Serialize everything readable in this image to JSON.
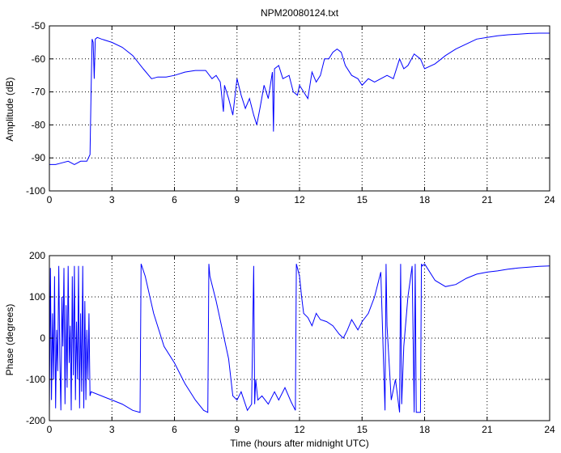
{
  "chart_data": [
    {
      "type": "line",
      "title": "NPM20080124.txt",
      "xlabel": "",
      "ylabel": "Amplitude (dB)",
      "xlim": [
        0,
        24
      ],
      "ylim": [
        -100,
        -50
      ],
      "xticks": [
        0,
        3,
        6,
        9,
        12,
        15,
        18,
        21,
        24
      ],
      "yticks": [
        -100,
        -90,
        -80,
        -70,
        -60,
        -50
      ],
      "grid": true,
      "color": "#0000ff",
      "series": [
        {
          "x": [
            0,
            0.3,
            0.6,
            0.9,
            1.2,
            1.5,
            1.8,
            1.95,
            2.0,
            2.05,
            2.1,
            2.15,
            2.2,
            2.3,
            2.5,
            3.0,
            3.5,
            4.0,
            4.5,
            4.9,
            5.2,
            5.6,
            6.0,
            6.5,
            7.0,
            7.5,
            7.8,
            8.0,
            8.2,
            8.3,
            8.35,
            8.4,
            8.6,
            8.8,
            9.0,
            9.2,
            9.4,
            9.6,
            9.8,
            9.95,
            10.1,
            10.3,
            10.5,
            10.7,
            10.75,
            10.8,
            11.0,
            11.2,
            11.5,
            11.7,
            11.9,
            12.0,
            12.2,
            12.4,
            12.6,
            12.8,
            13.0,
            13.2,
            13.4,
            13.6,
            13.8,
            14.0,
            14.2,
            14.5,
            14.8,
            15.0,
            15.3,
            15.6,
            15.9,
            16.2,
            16.5,
            16.8,
            17.0,
            17.2,
            17.5,
            17.8,
            18.0,
            18.5,
            19.0,
            19.5,
            20.0,
            20.5,
            21.0,
            21.5,
            22.0,
            22.5,
            23.0,
            23.5,
            24.0
          ],
          "y": [
            -92,
            -92,
            -91.5,
            -91,
            -92,
            -91,
            -91,
            -89,
            -70,
            -54,
            -55,
            -66,
            -54,
            -53.5,
            -54,
            -55,
            -56.5,
            -59,
            -63,
            -66,
            -65.5,
            -65.5,
            -65,
            -64,
            -63.5,
            -63.5,
            -66,
            -65,
            -67,
            -73,
            -76,
            -68,
            -72,
            -77,
            -66,
            -71,
            -75,
            -72,
            -77,
            -80,
            -75,
            -68,
            -72,
            -64,
            -82,
            -63,
            -62,
            -66,
            -65,
            -70,
            -71,
            -68,
            -70,
            -72,
            -64,
            -67,
            -65,
            -60,
            -60,
            -58,
            -57,
            -58,
            -62,
            -65,
            -66,
            -68,
            -66,
            -67,
            -66,
            -65,
            -66,
            -60,
            -63,
            -62,
            -58.5,
            -60,
            -63,
            -61.5,
            -59,
            -57,
            -55.5,
            -54,
            -53.5,
            -53,
            -52.7,
            -52.5,
            -52.3,
            -52.2,
            -52.2
          ]
        }
      ]
    },
    {
      "type": "line",
      "title": "",
      "xlabel": "Time (hours after midnight UTC)",
      "ylabel": "Phase (degrees)",
      "xlim": [
        0,
        24
      ],
      "ylim": [
        -200,
        200
      ],
      "xticks": [
        0,
        3,
        6,
        9,
        12,
        15,
        18,
        21,
        24
      ],
      "yticks": [
        -200,
        -100,
        0,
        100,
        200
      ],
      "grid": true,
      "color": "#0000ff",
      "series": [
        {
          "x": [
            0,
            0.05,
            0.1,
            0.15,
            0.2,
            0.25,
            0.3,
            0.35,
            0.4,
            0.45,
            0.5,
            0.55,
            0.6,
            0.65,
            0.7,
            0.75,
            0.8,
            0.85,
            0.9,
            0.95,
            1.0,
            1.05,
            1.1,
            1.15,
            1.2,
            1.25,
            1.3,
            1.35,
            1.4,
            1.45,
            1.5,
            1.55,
            1.6,
            1.65,
            1.7,
            1.75,
            1.8,
            1.85,
            1.9,
            1.95,
            2.0,
            2.5,
            3.0,
            3.5,
            4.0,
            4.35,
            4.4,
            4.6,
            5.0,
            5.5,
            6.0,
            6.5,
            7.0,
            7.4,
            7.6,
            7.65,
            7.7,
            8.0,
            8.3,
            8.6,
            8.8,
            9.0,
            9.2,
            9.5,
            9.7,
            9.8,
            9.85,
            9.9,
            10.0,
            10.2,
            10.5,
            10.8,
            11.0,
            11.3,
            11.6,
            11.8,
            11.85,
            11.9,
            12.0,
            12.1,
            12.2,
            12.4,
            12.6,
            12.8,
            13.0,
            13.3,
            13.6,
            13.9,
            14.1,
            14.3,
            14.5,
            14.8,
            15.0,
            15.3,
            15.6,
            15.9,
            16.1,
            16.15,
            16.2,
            16.4,
            16.6,
            16.8,
            16.85,
            16.9,
            17.0,
            17.2,
            17.4,
            17.5,
            17.55,
            17.6,
            17.8,
            17.85,
            17.9,
            18.0,
            18.5,
            19.0,
            19.5,
            20.0,
            20.5,
            21.0,
            21.5,
            22.0,
            22.5,
            23.0,
            23.5,
            24.0
          ],
          "y": [
            -180,
            170,
            -150,
            60,
            -100,
            150,
            -170,
            20,
            -80,
            175,
            -50,
            -175,
            100,
            -20,
            170,
            -160,
            80,
            -120,
            175,
            -60,
            30,
            -175,
            150,
            -90,
            175,
            -150,
            40,
            -100,
            175,
            -170,
            60,
            -130,
            175,
            -170,
            90,
            -150,
            20,
            -100,
            60,
            -140,
            -130,
            -140,
            -150,
            -160,
            -175,
            -180,
            180,
            150,
            60,
            -20,
            -60,
            -110,
            -150,
            -175,
            -180,
            180,
            150,
            90,
            20,
            -50,
            -140,
            -150,
            -130,
            -175,
            -160,
            175,
            -160,
            -100,
            -150,
            -140,
            -160,
            -130,
            -150,
            -120,
            -155,
            -175,
            180,
            170,
            150,
            100,
            60,
            50,
            30,
            60,
            45,
            40,
            30,
            10,
            0,
            20,
            45,
            20,
            40,
            60,
            100,
            160,
            -175,
            180,
            30,
            -150,
            -100,
            -180,
            180,
            -160,
            -20,
            100,
            175,
            -180,
            180,
            -180,
            -180,
            180,
            175,
            180,
            140,
            125,
            130,
            145,
            155,
            160,
            163,
            167,
            170,
            172,
            174,
            175
          ]
        }
      ]
    }
  ]
}
